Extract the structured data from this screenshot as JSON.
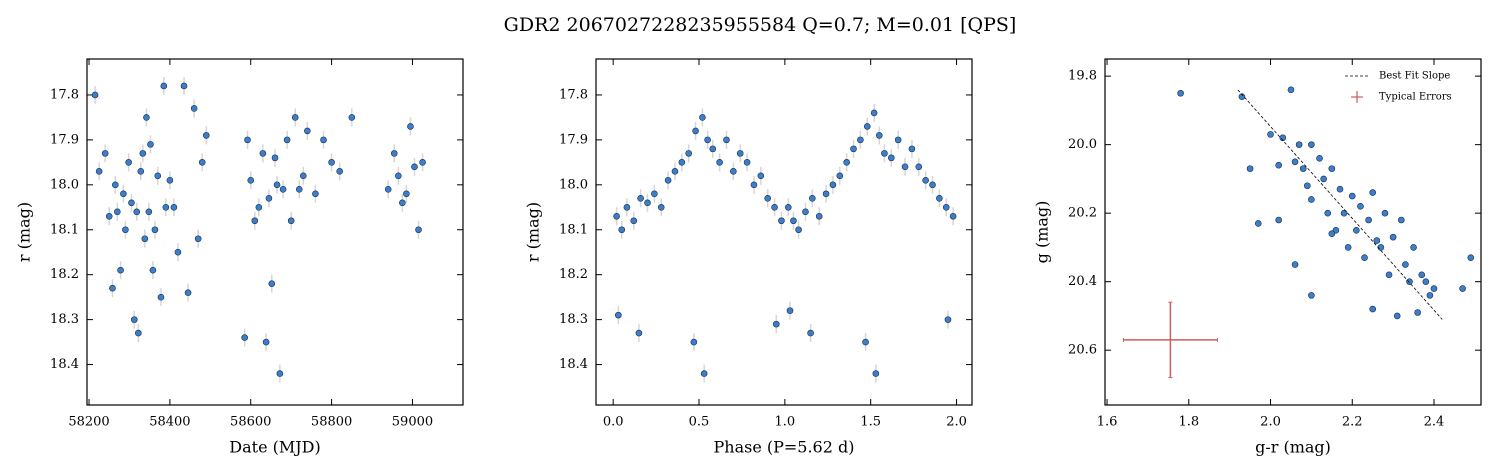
{
  "title": "GDR2 2067027228235955584  Q=0.7; M=0.01 [QPS]",
  "chart_data": [
    {
      "type": "scatter",
      "xlabel": "Date (MJD)",
      "ylabel": "r (mag)",
      "xlim": [
        58195,
        59125
      ],
      "ylim": [
        18.49,
        17.72
      ],
      "xticks": [
        58200,
        58400,
        58600,
        58800,
        59000
      ],
      "yticks": [
        17.8,
        17.9,
        {
          "value": 18,
          "label": "18.0"
        },
        18.1,
        18.2,
        18.3,
        18.4
      ],
      "series": [
        {
          "color": "#3a7fce",
          "yerr": 0.02,
          "x": [
            58215,
            58225,
            58240,
            58250,
            58258,
            58265,
            58270,
            58278,
            58285,
            58290,
            58298,
            58305,
            58312,
            58318,
            58322,
            58328,
            58333,
            58338,
            58342,
            58348,
            58352,
            58358,
            58363,
            58370,
            58378,
            58385,
            58390,
            58400,
            58410,
            58420,
            58435,
            58445,
            58460,
            58470,
            58480,
            58490,
            58585,
            58592,
            58600,
            58610,
            58620,
            58630,
            58638,
            58645,
            58652,
            58660,
            58665,
            58672,
            58680,
            58690,
            58700,
            58710,
            58720,
            58730,
            58740,
            58760,
            58780,
            58800,
            58820,
            58850,
            58940,
            58955,
            58965,
            58975,
            58985,
            58995,
            59005,
            59015,
            59025
          ],
          "values": [
            17.8,
            17.97,
            17.93,
            18.07,
            18.23,
            18.0,
            18.06,
            18.19,
            18.02,
            18.1,
            17.95,
            18.04,
            18.3,
            18.06,
            18.33,
            17.97,
            17.93,
            18.12,
            17.85,
            18.06,
            17.91,
            18.19,
            18.1,
            17.98,
            18.25,
            17.78,
            18.05,
            17.99,
            18.05,
            18.15,
            17.78,
            18.24,
            17.83,
            18.12,
            17.95,
            17.89,
            18.34,
            17.9,
            17.99,
            18.08,
            18.05,
            17.93,
            18.35,
            18.03,
            18.22,
            17.94,
            18.0,
            18.42,
            18.01,
            17.9,
            18.08,
            17.85,
            18.01,
            17.98,
            17.88,
            18.02,
            17.9,
            17.95,
            17.97,
            17.85,
            18.01,
            17.93,
            17.98,
            18.04,
            18.02,
            17.87,
            17.96,
            18.1,
            17.95
          ]
        }
      ]
    },
    {
      "type": "scatter",
      "xlabel": "Phase (P=5.62 d)",
      "ylabel": "r (mag)",
      "xlim": [
        -0.1,
        2.09
      ],
      "ylim": [
        18.49,
        17.72
      ],
      "xticks": [
        {
          "value": 0,
          "label": "0.0"
        },
        0.5,
        {
          "value": 1,
          "label": "1.0"
        },
        1.5,
        {
          "value": 2,
          "label": "2.0"
        }
      ],
      "yticks": [
        17.8,
        17.9,
        {
          "value": 18,
          "label": "18.0"
        },
        18.1,
        18.2,
        18.3,
        18.4
      ],
      "series": [
        {
          "color": "#3a7fce",
          "yerr": 0.02,
          "x": [
            0.02,
            0.05,
            0.08,
            0.12,
            0.16,
            0.2,
            0.24,
            0.28,
            0.32,
            0.36,
            0.4,
            0.44,
            0.48,
            0.52,
            0.55,
            0.58,
            0.62,
            0.66,
            0.7,
            0.74,
            0.78,
            0.82,
            0.86,
            0.9,
            0.94,
            0.98,
            0.03,
            0.15,
            0.47,
            0.53,
            0.95,
            1.02,
            1.05,
            1.08,
            1.12,
            1.16,
            1.2,
            1.24,
            1.28,
            1.32,
            1.36,
            1.4,
            1.44,
            1.48,
            1.52,
            1.55,
            1.58,
            1.62,
            1.66,
            1.7,
            1.74,
            1.78,
            1.82,
            1.86,
            1.9,
            1.94,
            1.98,
            1.03,
            1.15,
            1.47,
            1.53,
            1.95
          ],
          "values": [
            18.07,
            18.1,
            18.05,
            18.08,
            18.03,
            18.04,
            18.02,
            18.05,
            17.99,
            17.97,
            17.95,
            17.93,
            17.88,
            17.85,
            17.9,
            17.92,
            17.95,
            17.9,
            17.97,
            17.93,
            17.95,
            18.0,
            17.98,
            18.03,
            18.05,
            18.08,
            18.29,
            18.33,
            18.35,
            18.42,
            18.31,
            18.05,
            18.08,
            18.1,
            18.06,
            18.03,
            18.07,
            18.02,
            18.0,
            17.98,
            17.95,
            17.92,
            17.9,
            17.87,
            17.84,
            17.89,
            17.93,
            17.94,
            17.9,
            17.96,
            17.92,
            17.96,
            17.99,
            18.0,
            18.03,
            18.05,
            18.07,
            18.28,
            18.33,
            18.35,
            18.42,
            18.3
          ]
        }
      ]
    },
    {
      "type": "scatter",
      "xlabel": "g-r (mag)",
      "ylabel": "g (mag)",
      "xlim": [
        1.595,
        2.515
      ],
      "ylim": [
        20.76,
        19.75
      ],
      "xticks": [
        1.6,
        1.8,
        {
          "value": 2,
          "label": "2.0"
        },
        2.2,
        2.4
      ],
      "yticks": [
        19.8,
        {
          "value": 20,
          "label": "20.0"
        },
        20.2,
        20.4,
        20.6
      ],
      "legend": "upper right",
      "series": [
        {
          "color": "#3a7fce",
          "x": [
            1.78,
            1.93,
            1.95,
            1.97,
            2.0,
            2.02,
            2.03,
            2.05,
            2.06,
            2.07,
            2.08,
            2.09,
            2.1,
            2.1,
            2.12,
            2.13,
            2.14,
            2.15,
            2.16,
            2.17,
            2.18,
            2.19,
            2.2,
            2.21,
            2.22,
            2.23,
            2.24,
            2.25,
            2.26,
            2.27,
            2.28,
            2.29,
            2.3,
            2.31,
            2.32,
            2.33,
            2.34,
            2.35,
            2.36,
            2.37,
            2.38,
            2.39,
            2.4,
            2.47,
            2.49,
            2.06,
            2.1,
            2.02,
            2.15,
            2.25
          ],
          "values": [
            19.85,
            19.86,
            20.07,
            20.23,
            19.97,
            20.06,
            19.98,
            19.84,
            20.35,
            20.0,
            20.07,
            20.12,
            20.44,
            20.16,
            20.04,
            20.1,
            20.2,
            20.07,
            20.25,
            20.13,
            20.2,
            20.3,
            20.15,
            20.25,
            20.18,
            20.33,
            20.22,
            20.48,
            20.28,
            20.3,
            20.2,
            20.38,
            20.27,
            20.5,
            20.22,
            20.35,
            20.4,
            20.3,
            20.49,
            20.38,
            20.4,
            20.44,
            20.42,
            20.42,
            20.33,
            20.05,
            20.0,
            20.22,
            20.26,
            20.14
          ]
        }
      ],
      "fit": {
        "name": "Best Fit Slope",
        "color": "#000000",
        "x": [
          1.92,
          2.42
        ],
        "values": [
          19.84,
          20.51
        ]
      },
      "errorbar": {
        "name": "Typical Errors",
        "color": "#cd5c5c",
        "x": 1.755,
        "value": 20.57,
        "xerr": 0.115,
        "yerr": 0.11
      }
    }
  ]
}
